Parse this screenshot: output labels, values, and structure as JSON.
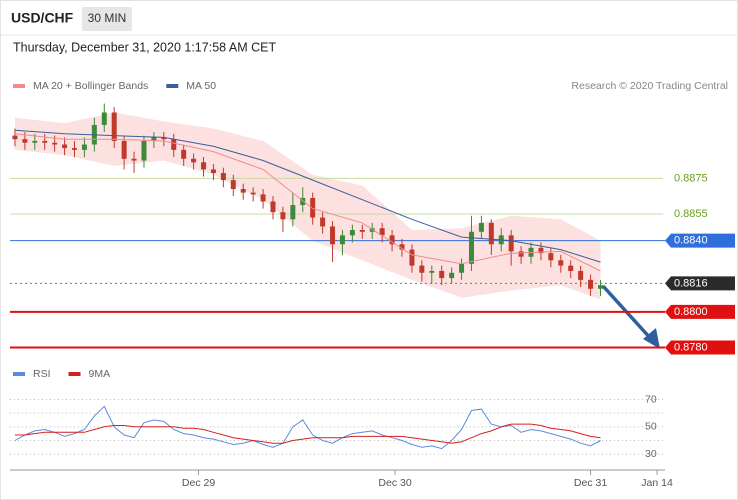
{
  "header": {
    "symbol": "USD/CHF",
    "timeframe": "30 MIN",
    "datetime": "Thursday, December 31, 2020 1:17:58 AM CET"
  },
  "chart_data": [
    {
      "type": "candlestick",
      "credit": "Research © 2020 Trading Central",
      "xlim": [
        -0.5,
        65.5
      ],
      "ylim": [
        0.8773,
        0.8919
      ],
      "candles": {
        "up_color": "#3c8a3c",
        "down_color": "#c0392b",
        "open": [
          0.8899,
          0.8897,
          0.8895,
          0.8896,
          0.8895,
          0.8894,
          0.8892,
          0.8891,
          0.8894,
          0.8905,
          0.8912,
          0.8896,
          0.8886,
          0.8885,
          0.8896,
          0.8898,
          0.8897,
          0.8891,
          0.8886,
          0.8884,
          0.888,
          0.8878,
          0.8874,
          0.8869,
          0.8867,
          0.8866,
          0.8862,
          0.8856,
          0.8852,
          0.886,
          0.8864,
          0.8853,
          0.8848,
          0.8838,
          0.8843,
          0.8846,
          0.8845,
          0.8847,
          0.8843,
          0.8838,
          0.8835,
          0.8826,
          0.8822,
          0.8823,
          0.8819,
          0.8822,
          0.8827,
          0.8845,
          0.885,
          0.8838,
          0.8843,
          0.8834,
          0.8831,
          0.8836,
          0.8833,
          0.8829,
          0.8826,
          0.8823,
          0.8818,
          0.8813
        ],
        "high": [
          0.8903,
          0.8901,
          0.89,
          0.89,
          0.8899,
          0.8898,
          0.8896,
          0.8898,
          0.8909,
          0.8917,
          0.8915,
          0.8899,
          0.889,
          0.8899,
          0.8901,
          0.8901,
          0.89,
          0.8894,
          0.8889,
          0.8887,
          0.8883,
          0.8881,
          0.8877,
          0.8872,
          0.887,
          0.8869,
          0.8865,
          0.8859,
          0.8867,
          0.887,
          0.8867,
          0.8856,
          0.8851,
          0.8846,
          0.8849,
          0.8849,
          0.885,
          0.885,
          0.8846,
          0.8841,
          0.8838,
          0.8829,
          0.8826,
          0.8826,
          0.8825,
          0.883,
          0.8854,
          0.8854,
          0.8852,
          0.8847,
          0.8846,
          0.8837,
          0.8839,
          0.8839,
          0.8836,
          0.8832,
          0.8829,
          0.8826,
          0.8821,
          0.8818
        ],
        "low": [
          0.8893,
          0.8891,
          0.8891,
          0.8891,
          0.889,
          0.8888,
          0.8887,
          0.8887,
          0.889,
          0.8901,
          0.8892,
          0.888,
          0.8878,
          0.8881,
          0.8892,
          0.8893,
          0.8887,
          0.8882,
          0.888,
          0.8876,
          0.8874,
          0.887,
          0.8865,
          0.8863,
          0.8862,
          0.8858,
          0.8852,
          0.8845,
          0.8848,
          0.8856,
          0.8849,
          0.8844,
          0.8828,
          0.8832,
          0.8839,
          0.8841,
          0.8841,
          0.8839,
          0.8834,
          0.8831,
          0.8822,
          0.8817,
          0.8816,
          0.8815,
          0.8816,
          0.8818,
          0.8823,
          0.8841,
          0.8832,
          0.8834,
          0.8826,
          0.8827,
          0.8827,
          0.8829,
          0.8825,
          0.8822,
          0.8819,
          0.8814,
          0.8809,
          0.8809
        ],
        "close": [
          0.8897,
          0.8895,
          0.8896,
          0.8895,
          0.8894,
          0.8892,
          0.8891,
          0.8894,
          0.8905,
          0.8912,
          0.8896,
          0.8886,
          0.8885,
          0.8896,
          0.8898,
          0.8897,
          0.8891,
          0.8886,
          0.8884,
          0.888,
          0.8878,
          0.8874,
          0.8869,
          0.8867,
          0.8866,
          0.8862,
          0.8856,
          0.8852,
          0.886,
          0.8864,
          0.8853,
          0.8848,
          0.8838,
          0.8843,
          0.8846,
          0.8845,
          0.8847,
          0.8843,
          0.8838,
          0.8835,
          0.8826,
          0.8822,
          0.8823,
          0.8819,
          0.8822,
          0.8827,
          0.8845,
          0.885,
          0.8838,
          0.8843,
          0.8834,
          0.8831,
          0.8836,
          0.8833,
          0.8829,
          0.8826,
          0.8823,
          0.8818,
          0.8813,
          0.8815
        ]
      },
      "series": [
        {
          "name": "MA 20 + Bollinger Bands",
          "color": "#f08c8c",
          "band_color": "#fde0e0",
          "x": [
            0,
            5,
            10,
            15,
            20,
            25,
            30,
            35,
            40,
            45,
            50,
            55,
            59
          ],
          "values": [
            0.89,
            0.8897,
            0.8897,
            0.8896,
            0.889,
            0.888,
            0.8858,
            0.885,
            0.8832,
            0.8827,
            0.8833,
            0.8834,
            0.8823
          ],
          "upper": [
            0.8909,
            0.8906,
            0.8912,
            0.8907,
            0.8903,
            0.8896,
            0.8877,
            0.8871,
            0.8846,
            0.8847,
            0.8854,
            0.8852,
            0.884
          ],
          "lower": [
            0.8891,
            0.8888,
            0.8882,
            0.8885,
            0.8877,
            0.8863,
            0.884,
            0.8829,
            0.8818,
            0.8808,
            0.8812,
            0.8815,
            0.8807
          ]
        },
        {
          "name": "MA 50",
          "color": "#3a5f9a",
          "x": [
            0,
            5,
            10,
            15,
            20,
            25,
            30,
            35,
            40,
            45,
            50,
            55,
            59
          ],
          "values": [
            0.8902,
            0.89,
            0.8899,
            0.8898,
            0.8893,
            0.8885,
            0.8874,
            0.8863,
            0.8852,
            0.8842,
            0.884,
            0.8835,
            0.8828
          ]
        }
      ],
      "levels": [
        {
          "value": 0.8875,
          "color": "#6aa121",
          "line_color": "#c9dca0",
          "style": "solid",
          "label_style": "text"
        },
        {
          "value": 0.8855,
          "color": "#6aa121",
          "line_color": "#c9dca0",
          "style": "solid",
          "label_style": "text"
        },
        {
          "value": {
            "value": 0.884,
            "label": "0.8840"
          },
          "color": "#2e6fdc",
          "line_color": "#2e6fdc",
          "style": "solid",
          "label_style": "box"
        },
        {
          "value": 0.8816,
          "color": "#2b2b2b",
          "line_color": "#777777",
          "style": "dotted",
          "label_style": "box"
        },
        {
          "value": {
            "value": 0.88,
            "label": "0.8800"
          },
          "color": "#e01010",
          "line_color": "#e01010",
          "style": "thick",
          "label_style": "box"
        },
        {
          "value": {
            "value": 0.878,
            "label": "0.8780"
          },
          "color": "#e01010",
          "line_color": "#e01010",
          "style": "thick",
          "label_style": "box"
        }
      ]
    },
    {
      "type": "line",
      "xlim": [
        -0.5,
        65.5
      ],
      "ylim": [
        22,
        77
      ],
      "yticks": [
        30,
        50,
        70
      ],
      "ygrid": [
        30,
        40,
        50,
        60,
        70
      ],
      "xticks": [
        {
          "value": 18.5,
          "label": "Dec 29"
        },
        {
          "value": 38.3,
          "label": "Dec 30"
        },
        {
          "value": 58,
          "label": "Dec 31"
        },
        {
          "value": 64.7,
          "label": "Jan 14"
        }
      ],
      "series": [
        {
          "name": "RSI",
          "color": "#5b8bd6",
          "values": [
            40,
            44,
            47,
            48,
            46,
            43,
            45,
            48,
            58,
            65,
            50,
            44,
            42,
            53,
            55,
            54,
            48,
            45,
            44,
            42,
            41,
            39,
            37,
            38,
            40,
            37,
            35,
            38,
            50,
            55,
            44,
            40,
            38,
            42,
            45,
            46,
            47,
            44,
            42,
            40,
            37,
            35,
            36,
            34,
            40,
            48,
            62,
            63,
            52,
            50,
            51,
            46,
            48,
            47,
            45,
            43,
            41,
            38,
            36,
            40
          ]
        },
        {
          "name": "9MA",
          "color": "#d42020",
          "values": [
            44,
            44,
            45,
            46,
            46,
            46,
            46,
            46,
            48,
            50,
            51,
            51,
            50,
            50,
            50,
            50,
            50,
            49,
            49,
            48,
            46,
            44,
            42,
            41,
            40,
            39,
            38,
            38,
            40,
            41,
            42,
            42,
            42,
            42,
            43,
            43,
            43,
            43,
            43,
            43,
            42,
            41,
            40,
            39,
            38,
            39,
            42,
            45,
            47,
            50,
            52,
            52,
            52,
            51,
            49,
            48,
            47,
            45,
            43,
            42
          ]
        }
      ]
    }
  ]
}
